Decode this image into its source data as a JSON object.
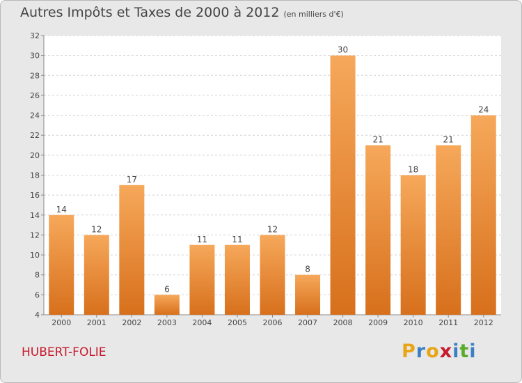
{
  "title": "Autres Impôts et Taxes de 2000 à 2012",
  "unit": "(en milliers d'€)",
  "commune": "HUBERT-FOLIE",
  "logo": {
    "letters": [
      "P",
      "r",
      "o",
      "x",
      "i",
      "t",
      "i"
    ],
    "colors": [
      "#e8a617",
      "#3b7fc4",
      "#e8a617",
      "#c8192e",
      "#3b7fc4",
      "#5aaa2e",
      "#3b7fc4"
    ]
  },
  "colors": {
    "bar_light": "#f6a85a",
    "bar_dark": "#d7701c",
    "text": "#444444"
  },
  "chart_data": {
    "type": "bar",
    "title": "Autres Impôts et Taxes de 2000 à 2012",
    "categories": [
      "2000",
      "2001",
      "2002",
      "2003",
      "2004",
      "2005",
      "2006",
      "2007",
      "2008",
      "2009",
      "2010",
      "2011",
      "2012"
    ],
    "values": [
      14,
      12,
      17,
      6,
      11,
      11,
      12,
      8,
      30,
      21,
      18,
      21,
      24
    ],
    "ylim": [
      4,
      32
    ],
    "yticks": [
      4,
      6,
      8,
      10,
      12,
      14,
      16,
      18,
      20,
      22,
      24,
      26,
      28,
      30,
      32
    ],
    "grid": true,
    "data_labels": true
  }
}
